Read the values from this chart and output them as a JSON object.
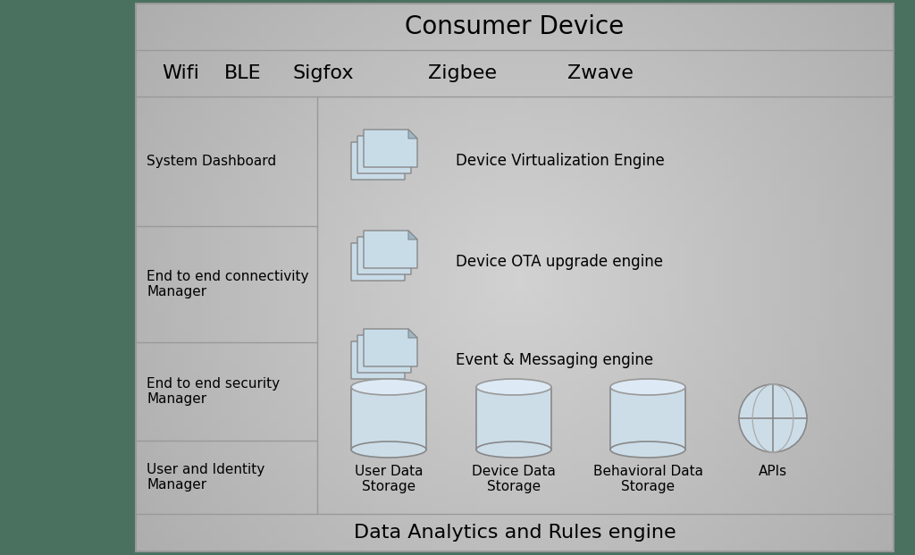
{
  "title": "Consumer Device",
  "footer": "Data Analytics and Rules engine",
  "col_headers": [
    "Wifi",
    "BLE",
    "Sigfox",
    "Zigbee",
    "Zwave"
  ],
  "row_labels": [
    "System Dashboard",
    "End to end connectivity\nManager",
    "End to end security\nManager",
    "User and Identity\nManager"
  ],
  "engine_labels": [
    "Device Virtualization Engine",
    "Device OTA upgrade engine",
    "Event & Messaging engine"
  ],
  "storage_labels": [
    "User Data\nStorage",
    "Device Data\nStorage",
    "Behavioral Data\nStorage",
    "APIs"
  ],
  "outer_bg": "#4a7060",
  "box_bg_dark": "#aaaaaa",
  "box_bg_light": "#d8d8d8",
  "border_color": "#999999",
  "title_fontsize": 20,
  "header_fontsize": 16,
  "label_fontsize": 11,
  "small_fontsize": 11,
  "icon_color": "#c8dce8",
  "cylinder_color": "#ccdde8",
  "cylinder_top": "#ddeaf5"
}
